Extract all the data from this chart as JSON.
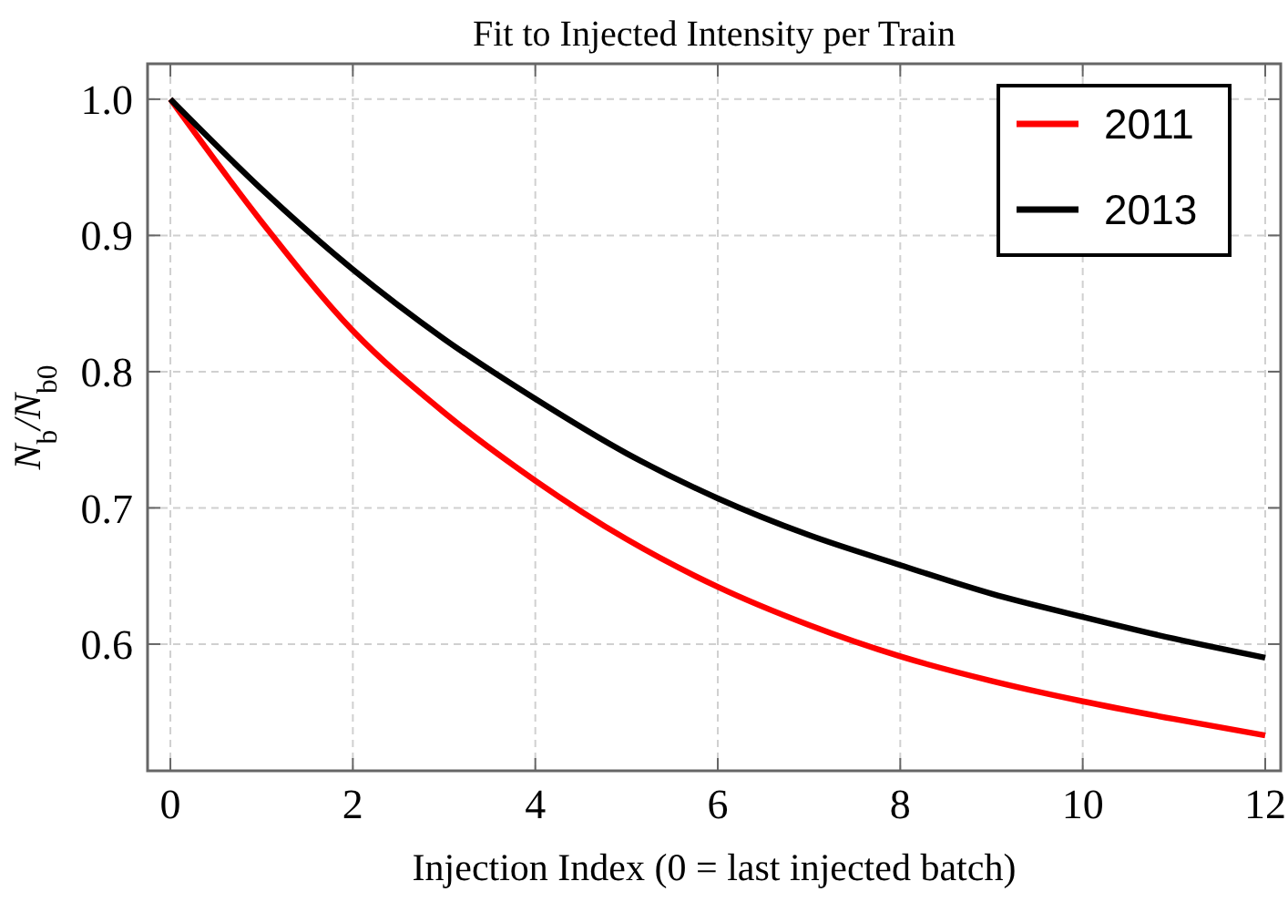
{
  "chart_data": {
    "type": "line",
    "title": "Fit to Injected Intensity per Train",
    "xlabel": "Injection Index (0 = last injected batch)",
    "ylabel": "N$_{b}$/N$_{b0}$",
    "x": [
      0,
      1,
      2,
      3,
      4,
      5,
      6,
      7,
      8,
      9,
      10,
      11,
      12
    ],
    "series": [
      {
        "name": "2011",
        "color": "#ff0000",
        "values": [
          1.0,
          0.91,
          0.83,
          0.77,
          0.72,
          0.677,
          0.642,
          0.614,
          0.591,
          0.573,
          0.558,
          0.545,
          0.533
        ]
      },
      {
        "name": "2013",
        "color": "#000000",
        "values": [
          1.0,
          0.934,
          0.875,
          0.824,
          0.78,
          0.74,
          0.707,
          0.68,
          0.658,
          0.637,
          0.62,
          0.604,
          0.59
        ]
      }
    ],
    "xlim": [
      -0.25,
      12.17
    ],
    "ylim": [
      0.507,
      1.026
    ],
    "xticks": [
      0,
      2,
      4,
      6,
      8,
      10,
      12
    ],
    "yticks": [
      0.6,
      0.7,
      0.8,
      0.9,
      {
        "value": 1,
        "label": "1.0"
      }
    ],
    "grid": true,
    "legend": "top right",
    "marker": "none",
    "line_style": "solid"
  }
}
